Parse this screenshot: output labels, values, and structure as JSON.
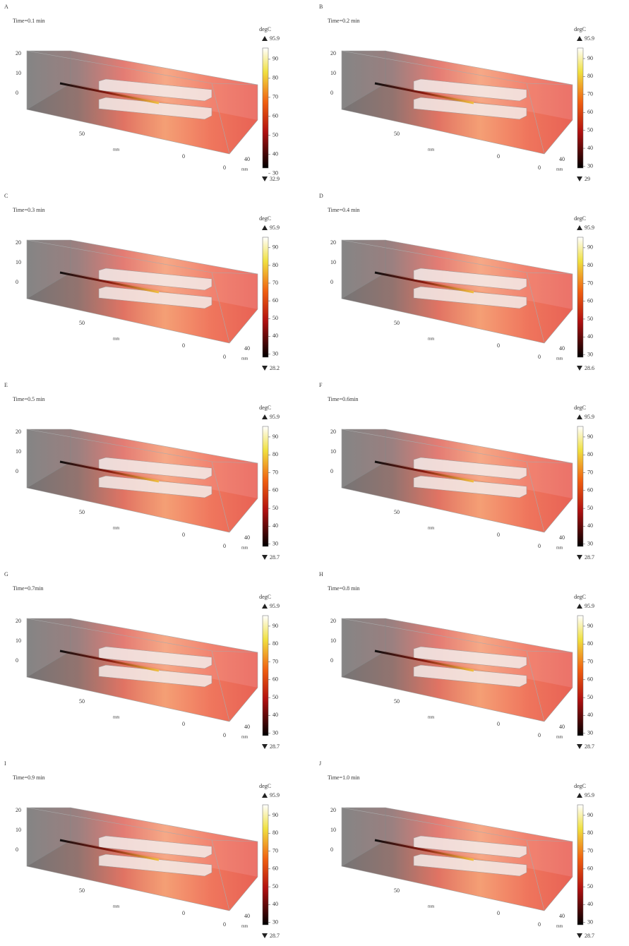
{
  "axis_unit": "mm",
  "z_ticks": [
    20,
    10,
    0
  ],
  "x_ticks": [
    50,
    0
  ],
  "y_ticks": [
    0,
    40
  ],
  "colorbar_ticks": [
    90,
    80,
    70,
    60,
    50,
    40,
    30
  ],
  "panels": [
    {
      "label": "A",
      "time": "Time=0.1 min",
      "unit": "degC",
      "max": 95.9,
      "min": 32.9
    },
    {
      "label": "B",
      "time": "Time=0.2 min",
      "unit": "degC",
      "max": 95.9,
      "min": 29
    },
    {
      "label": "C",
      "time": "Time=0.3 min",
      "unit": "degC",
      "max": 95.9,
      "min": 28.2
    },
    {
      "label": "D",
      "time": "Time=0.4 min",
      "unit": "degC",
      "max": 95.9,
      "min": 28.6
    },
    {
      "label": "E",
      "time": "Time=0.5 min",
      "unit": "degC",
      "max": 95.9,
      "min": 28.7
    },
    {
      "label": "F",
      "time": "Time=0.6min",
      "unit": "degC",
      "max": 95.9,
      "min": 28.7
    },
    {
      "label": "G",
      "time": "Time=0.7min",
      "unit": "degC",
      "max": 95.9,
      "min": 28.7
    },
    {
      "label": "H",
      "time": "Time=0.8 min",
      "unit": "degC",
      "max": 95.9,
      "min": 28.7
    },
    {
      "label": "I",
      "time": "Time=0.9 min",
      "unit": "degC",
      "max": 95.9,
      "min": 28.7
    },
    {
      "label": "J",
      "time": "Time=1.0 min",
      "unit": "degC",
      "max": 95.9,
      "min": 28.7
    }
  ]
}
